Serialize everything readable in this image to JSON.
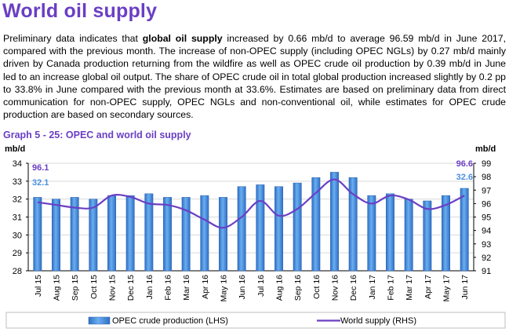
{
  "page": {
    "title": "World oil supply",
    "paragraph": {
      "pre": "Preliminary data indicates that ",
      "bold": "global oil supply",
      "post": " increased by 0.66 mb/d to average 96.59 mb/d in June 2017, compared with the previous month. The increase of non-OPEC supply (including OPEC NGLs) by 0.27 mb/d mainly driven by Canada production returning from the wildfire as well as OPEC crude oil production by 0.39 mb/d in June led to an increase global oil output. The share of OPEC crude oil in total global production increased slightly by 0.2 pp to 33.8% in June compared with the previous month at 33.6%. Estimates are based on preliminary data from direct communication for non-OPEC supply, OPEC NGLs and non-conventional oil, while estimates for OPEC crude production are based on secondary sources."
    },
    "graph_title": "Graph 5 - 25: OPEC and world oil supply"
  },
  "chart_data": {
    "type": "bar",
    "title": "Graph 5 - 25: OPEC and world oil supply",
    "categories": [
      "Jul 15",
      "Aug 15",
      "Sep 15",
      "Oct 15",
      "Nov 15",
      "Dec 15",
      "Jan 16",
      "Feb 16",
      "Mar 16",
      "Apr 16",
      "May 16",
      "Jun 16",
      "Jul 16",
      "Aug 16",
      "Sep 16",
      "Oct 16",
      "Nov 16",
      "Dec 16",
      "Jan 17",
      "Feb 17",
      "Mar 17",
      "Apr 17",
      "May 17",
      "Jun 17"
    ],
    "ylabel_left": "mb/d",
    "ylabel_right": "mb/d",
    "ylim_left": [
      28,
      34
    ],
    "ylim_right": [
      91,
      99
    ],
    "yticks_left": [
      "28",
      "29",
      "30",
      "31",
      "32",
      "33",
      "34"
    ],
    "yticks_right": [
      "91",
      "92",
      "93",
      "94",
      "95",
      "96",
      "97",
      "98",
      "99"
    ],
    "grid": true,
    "legend_position": "bottom",
    "series": [
      {
        "name": "OPEC crude production (LHS)",
        "type": "bar",
        "axis": "left",
        "color": "#4a90e2",
        "values": [
          32.1,
          32.0,
          32.1,
          32.0,
          32.2,
          32.2,
          32.3,
          32.1,
          32.1,
          32.2,
          32.1,
          32.7,
          32.8,
          32.7,
          32.9,
          33.2,
          33.5,
          33.2,
          32.2,
          32.3,
          32.0,
          31.9,
          32.2,
          32.6
        ]
      },
      {
        "name": "World supply (RHS)",
        "type": "line",
        "axis": "right",
        "color": "#6a3fc4",
        "values": [
          96.1,
          95.9,
          95.7,
          95.7,
          96.6,
          96.5,
          96.0,
          95.9,
          95.5,
          94.8,
          94.2,
          95.0,
          96.2,
          95.1,
          95.6,
          96.8,
          97.8,
          96.7,
          96.0,
          96.6,
          96.3,
          95.6,
          95.9,
          96.6
        ]
      }
    ],
    "annotations": {
      "left_first_world": "96.1",
      "left_first_opec": "32.1",
      "right_last_world": "96.6",
      "right_last_opec": "32.6"
    },
    "colors": {
      "bar": "#4a90e2",
      "line": "#6a3fc4",
      "opec_label": "#4a90e2",
      "world_label": "#6a3fc4"
    }
  }
}
